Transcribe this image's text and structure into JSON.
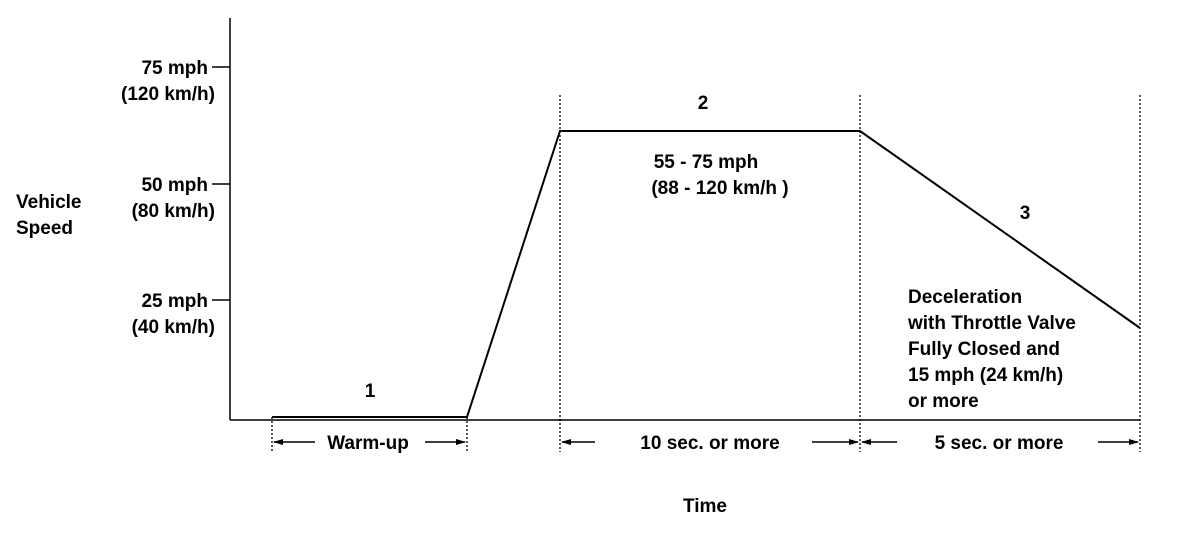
{
  "y_axis": {
    "title_line1": "Vehicle",
    "title_line2": "Speed",
    "ticks": [
      {
        "mph": "75 mph",
        "kmh": "(120 km/h)"
      },
      {
        "mph": "50 mph",
        "kmh": "(80 km/h)"
      },
      {
        "mph": "25 mph",
        "kmh": "(40 km/h)"
      }
    ]
  },
  "x_axis": {
    "title": "Time"
  },
  "phases": [
    {
      "number": "1",
      "duration": "Warm-up"
    },
    {
      "number": "2",
      "speed_line1": "55 - 75 mph",
      "speed_line2": "(88 - 120 km/h )",
      "duration": "10 sec. or more"
    },
    {
      "number": "3",
      "note": [
        "Deceleration",
        "with Throttle Valve",
        "Fully Closed and",
        "15 mph (24 km/h)",
        "or more"
      ],
      "duration": "5 sec. or more"
    }
  ]
}
